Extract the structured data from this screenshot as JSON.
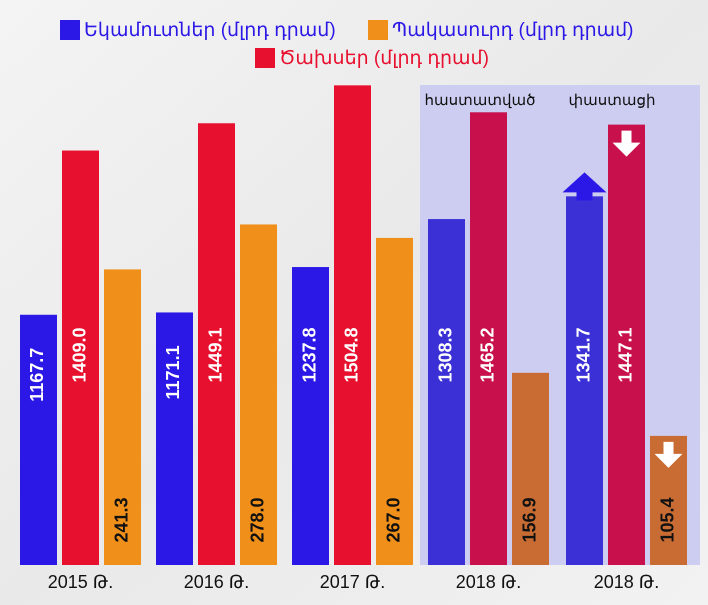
{
  "chart_data": {
    "type": "bar",
    "categories": [
      "2015 Թ.",
      "2016 Թ.",
      "2017 Թ.",
      "2018 Թ.",
      "2018 Թ."
    ],
    "annotations": [
      "հաստատված",
      "փաստացի"
    ],
    "series": [
      {
        "name": "Եկամուտներ (մլրդ դրամ)",
        "color": "#2b17e6",
        "colors": [
          "#2b17e6",
          "#2b17e6",
          "#2b17e6",
          "#3b2fd6",
          "#3b2fd6"
        ],
        "values": [
          1167.7,
          1171.1,
          1237.8,
          1308.3,
          1341.7
        ]
      },
      {
        "name": "Պակասուրդ (մլրդ դրամ)",
        "color": "#f0901a",
        "colors": [
          "#f0901a",
          "#f0901a",
          "#f0901a",
          "#c96c34",
          "#c96c34"
        ],
        "values": [
          241.3,
          278.0,
          267.0,
          156.9,
          105.4
        ],
        "axis": "y2"
      },
      {
        "name": "Ծախսեր (մլրդ դրամ)",
        "color": "#e8102f",
        "colors": [
          "#e8102f",
          "#e8102f",
          "#e8102f",
          "#c8104c",
          "#c8104c"
        ],
        "values": [
          1409.0,
          1449.1,
          1504.8,
          1465.2,
          1447.1
        ]
      }
    ],
    "value_labels": [
      [
        "1167.7",
        "1171.1",
        "1237.8",
        "1308.3",
        "1341.7"
      ],
      [
        "241.3",
        "278.0",
        "267.0",
        "156.9",
        "105.4"
      ],
      [
        "1409.0",
        "1449.1",
        "1504.8",
        "1465.2",
        "1447.1"
      ]
    ],
    "ylim": [
      800,
      1520
    ],
    "y2lim": [
      0,
      400
    ]
  }
}
